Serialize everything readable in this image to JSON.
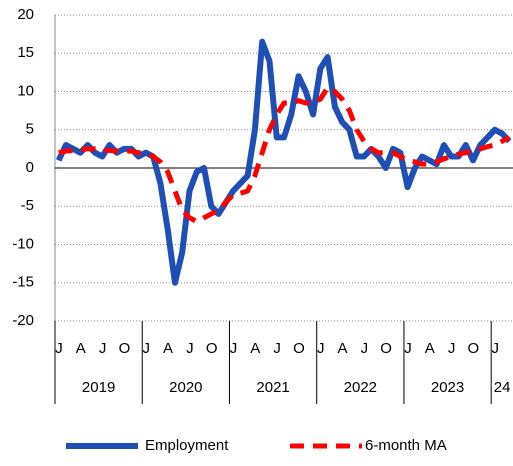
{
  "chart_data": {
    "type": "line",
    "categories": [
      "J",
      null,
      null,
      "A",
      null,
      null,
      "J",
      null,
      null,
      "O",
      null,
      null,
      "J",
      null,
      null,
      "A",
      null,
      null,
      "J",
      null,
      null,
      "O",
      null,
      null,
      "J",
      null,
      null,
      "A",
      null,
      null,
      "J",
      null,
      null,
      "O",
      null,
      null,
      "J",
      null,
      null,
      "A",
      null,
      null,
      "J",
      null,
      null,
      "O",
      null,
      null,
      "J",
      null,
      null,
      "A",
      null,
      null,
      "J",
      null,
      null,
      "O",
      null,
      null,
      "J",
      null,
      null
    ],
    "years": [
      "2019",
      "2020",
      "2021",
      "2022",
      "2023",
      "24"
    ],
    "series": [
      {
        "name": "Employment",
        "color": "#1f4fb4",
        "dash": false,
        "values": [
          1,
          3,
          2.5,
          2,
          3,
          2,
          1.5,
          3,
          2,
          2.5,
          2.5,
          1.5,
          2,
          1.5,
          -2,
          -8,
          -15,
          -11,
          -3,
          -0.5,
          0,
          -5,
          -6,
          -4.5,
          -3,
          -2,
          -1,
          5,
          16.5,
          14,
          4,
          4,
          7,
          12,
          10,
          7,
          13,
          14.5,
          8,
          6,
          5,
          1.5,
          1.5,
          2.5,
          1.5,
          0,
          2.5,
          2,
          -2.5,
          0,
          1.5,
          1,
          0.5,
          3,
          1.5,
          1.5,
          3,
          1,
          3,
          4,
          5,
          4.5,
          3.5
        ]
      },
      {
        "name": "6-month MA",
        "color": "#ff0000",
        "dash": true,
        "values": [
          2,
          2.2,
          2.3,
          2.4,
          2.5,
          2.5,
          2.3,
          2.3,
          2.2,
          2.2,
          2.2,
          2,
          1.8,
          1.5,
          0.8,
          -0.5,
          -3,
          -5.5,
          -6.5,
          -7,
          -6.5,
          -6,
          -5.5,
          -4.5,
          -3.5,
          -3.3,
          -3,
          -1,
          2,
          5,
          7,
          8.5,
          8.5,
          8.8,
          8.5,
          8.5,
          9,
          10.5,
          10,
          9,
          7.5,
          5,
          3.5,
          2.5,
          2,
          2,
          2,
          1.5,
          1,
          0.8,
          0.5,
          0.5,
          0.8,
          1.2,
          1.5,
          1.8,
          2,
          2.2,
          2.5,
          2.8,
          3,
          3.5,
          4
        ]
      }
    ],
    "ylim": [
      -20,
      20
    ],
    "yticks": [
      -20,
      -15,
      -10,
      -5,
      0,
      5,
      10,
      15,
      20
    ],
    "grid": true,
    "legend": "bottom"
  }
}
